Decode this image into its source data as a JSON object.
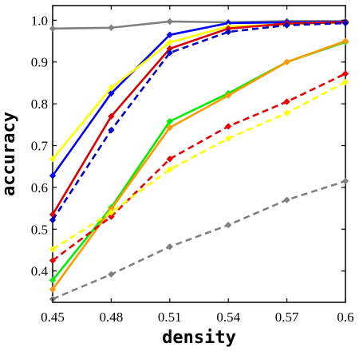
{
  "chart_data": {
    "type": "line",
    "xlabel": "density",
    "ylabel": "accuracy",
    "x": [
      0.45,
      0.48,
      0.51,
      0.54,
      0.57,
      0.6
    ],
    "x_tick_labels": [
      "0.45",
      "0.48",
      "0.51",
      "0.54",
      "0.57",
      "0.6"
    ],
    "y_ticks": [
      0.4,
      0.5,
      0.6,
      0.7,
      0.8,
      0.9,
      1.0
    ],
    "y_tick_labels": [
      "0.4",
      "0.5",
      "0.6",
      "0.7",
      "0.8",
      "0.9",
      "1.0"
    ],
    "xlim": [
      0.45,
      0.6
    ],
    "ylim": [
      0.325,
      1.035
    ],
    "grid": false,
    "legend": false,
    "series": [
      {
        "color": "#808080",
        "dashed": false,
        "values": [
          0.98,
          0.982,
          0.997,
          0.995,
          0.998,
          0.998
        ]
      },
      {
        "color": "#0000ff",
        "dashed": false,
        "values": [
          0.628,
          0.825,
          0.965,
          0.993,
          0.995,
          0.996
        ]
      },
      {
        "color": "#ffff00",
        "dashed": false,
        "values": [
          0.668,
          0.838,
          0.947,
          0.985,
          0.99,
          0.995
        ]
      },
      {
        "color": "#dd0000",
        "dashed": false,
        "values": [
          0.535,
          0.77,
          0.932,
          0.98,
          0.992,
          0.995
        ]
      },
      {
        "color": "#0000cc",
        "dashed": true,
        "values": [
          0.522,
          0.737,
          0.922,
          0.972,
          0.988,
          0.993
        ]
      },
      {
        "color": "#00ee00",
        "dashed": false,
        "values": [
          0.378,
          0.552,
          0.758,
          0.825,
          0.9,
          0.948
        ]
      },
      {
        "color": "#ff9900",
        "dashed": false,
        "values": [
          0.356,
          0.548,
          0.743,
          0.82,
          0.9,
          0.95
        ]
      },
      {
        "color": "#ee0000",
        "dashed": true,
        "values": [
          0.425,
          0.53,
          0.668,
          0.746,
          0.805,
          0.872
        ]
      },
      {
        "color": "#ffff00",
        "dashed": true,
        "values": [
          0.452,
          0.54,
          0.643,
          0.717,
          0.778,
          0.852
        ]
      },
      {
        "color": "#808080",
        "dashed": true,
        "values": [
          0.333,
          0.392,
          0.458,
          0.51,
          0.57,
          0.615
        ]
      }
    ]
  }
}
